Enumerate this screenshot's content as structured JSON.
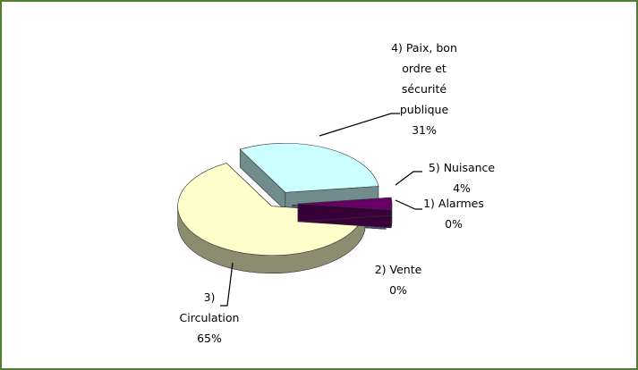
{
  "chart_data": {
    "type": "pie",
    "categories": [
      "1) Alarmes",
      "2) Vente",
      "3) Circulation",
      "4) Paix, bon ordre et sécurité publique",
      "5) Nuisance"
    ],
    "values": [
      0,
      0,
      65,
      31,
      4
    ],
    "value_labels": [
      "0%",
      "0%",
      "65%",
      "31%",
      "4%"
    ],
    "colors": [
      "#800000",
      "#9999ff",
      "#ffffcc",
      "#ccffff",
      "#660066"
    ]
  }
}
